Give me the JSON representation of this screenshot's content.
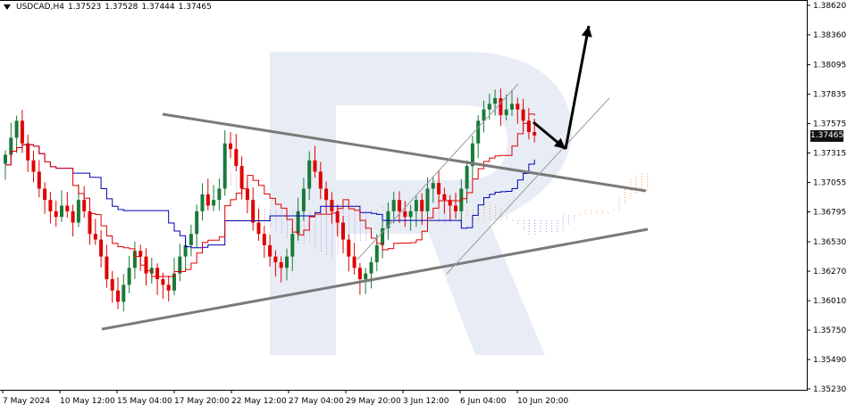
{
  "header": {
    "symbol_timeframe": "USDCAD,H4",
    "open": "1.37523",
    "high": "1.37528",
    "low": "1.37444",
    "close": "1.37465"
  },
  "current_price_label": "1.37465",
  "colors": {
    "bull": "#1a7a3a",
    "bear": "#e00000",
    "tenkan": "#e00000",
    "kijun": "#0000b0",
    "cloud": "#f39a4b",
    "cloud_alt": "#b38ad6",
    "trend": "#7a7a7a",
    "channel": "#9a9a9a",
    "arrow": "#000000",
    "watermark": "#e8edf5"
  },
  "chart_data": {
    "type": "candlestick",
    "title": "USDCAD,H4",
    "ylim": [
      1.3523,
      1.3862
    ],
    "y_ticks": [
      "1.38620",
      "1.38360",
      "1.38095",
      "1.37835",
      "1.37575",
      "1.37315",
      "1.37055",
      "1.36795",
      "1.36530",
      "1.36270",
      "1.36010",
      "1.35750",
      "1.35490",
      "1.35230"
    ],
    "x_ticks": [
      "7 May 2024",
      "10 May 12:00",
      "15 May 04:00",
      "17 May 20:00",
      "22 May 12:00",
      "27 May 04:00",
      "29 May 20:00",
      "3 Jun 12:00",
      "6 Jun 04:00",
      "10 Jun 20:00"
    ],
    "candles_close_path": [
      1.373,
      1.3745,
      1.376,
      1.374,
      1.3725,
      1.3715,
      1.37,
      1.369,
      1.368,
      1.3675,
      1.3685,
      1.368,
      1.367,
      1.369,
      1.368,
      1.366,
      1.3655,
      1.364,
      1.362,
      1.361,
      1.36,
      1.3615,
      1.363,
      1.3645,
      1.364,
      1.3625,
      1.363,
      1.362,
      1.3615,
      1.361,
      1.3625,
      1.364,
      1.365,
      1.366,
      1.368,
      1.3695,
      1.3685,
      1.369,
      1.37,
      1.374,
      1.3735,
      1.372,
      1.37,
      1.369,
      1.367,
      1.366,
      1.365,
      1.364,
      1.3635,
      1.363,
      1.364,
      1.366,
      1.368,
      1.37,
      1.3725,
      1.3715,
      1.37,
      1.369,
      1.368,
      1.367,
      1.3655,
      1.364,
      1.363,
      1.362,
      1.3625,
      1.3635,
      1.365,
      1.3665,
      1.368,
      1.369,
      1.368,
      1.3675,
      1.368,
      1.369,
      1.368,
      1.37,
      1.3705,
      1.3695,
      1.369,
      1.3685,
      1.368,
      1.37,
      1.372,
      1.374,
      1.376,
      1.377,
      1.3775,
      1.378,
      1.3765,
      1.377,
      1.3775,
      1.377,
      1.376,
      1.375,
      1.3747
    ],
    "annotations": {
      "upper_trendline": [
        [
          182,
          128
        ],
        [
          723,
          214
        ]
      ],
      "lower_trendline": [
        [
          114,
          369
        ],
        [
          725,
          257
        ]
      ],
      "channel_upper": [
        [
          400,
          291
        ],
        [
          580,
          94
        ]
      ],
      "channel_lower": [
        [
          500,
          307
        ],
        [
          682,
          110
        ]
      ],
      "forecast_arrow_1": [
        [
          597,
          137
        ],
        [
          633,
          167
        ]
      ],
      "forecast_arrow_2": [
        [
          633,
          167
        ],
        [
          659,
          29
        ]
      ]
    }
  }
}
